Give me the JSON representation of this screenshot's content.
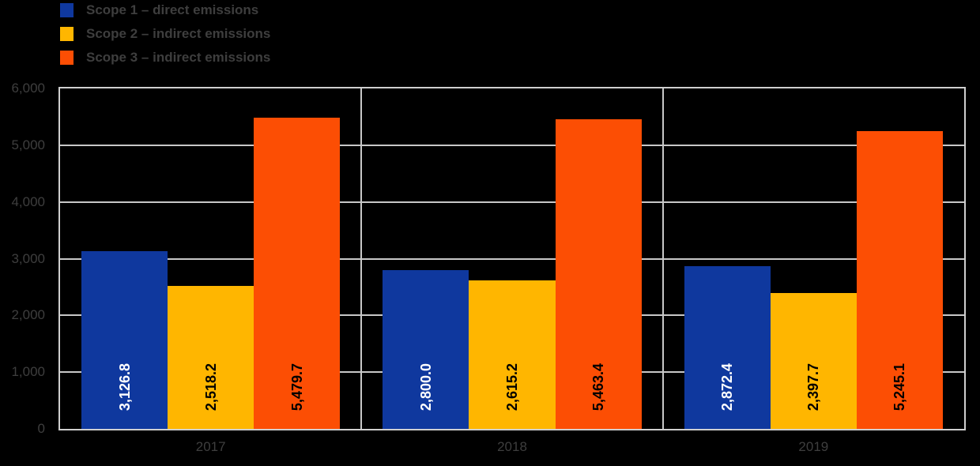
{
  "colors": {
    "background": "#000000",
    "grid": "#c8c8c8",
    "frame": "#cfcfcf",
    "axis_text": "#3e3e3e",
    "scope1_blue": "#0f389e",
    "scope2_yellow": "#ffb600",
    "scope3_orange": "#fc4e04",
    "value_label_on_blue": "#ffffff",
    "value_label_on_warm": "#000000"
  },
  "legend": {
    "position": "top-left",
    "items": [
      {
        "label": "Scope 1 – direct emissions",
        "color": "#0f389e"
      },
      {
        "label": "Scope 2 – indirect emissions",
        "color": "#ffb600"
      },
      {
        "label": "Scope 3 – indirect emissions",
        "color": "#fc4e04"
      }
    ]
  },
  "chart_data": {
    "type": "bar",
    "title": "",
    "xlabel": "",
    "ylabel": "",
    "grid": true,
    "legend_position": "top-left",
    "categories": [
      "2017",
      "2018",
      "2019"
    ],
    "ylim": [
      0,
      6000
    ],
    "ytick_step": 1000,
    "yticks": [
      "6,000",
      "5,000",
      "4,000",
      "3,000",
      "2,000",
      "1,000",
      "0"
    ],
    "series": [
      {
        "name": "Scope 1 – direct emissions",
        "color": "#0f389e",
        "label_color": "#ffffff",
        "values": [
          3126.8,
          2800.0,
          2872.4
        ],
        "value_labels": [
          "3,126.8",
          "2,800.0",
          "2,872.4"
        ]
      },
      {
        "name": "Scope 2 – indirect emissions",
        "color": "#ffb600",
        "label_color": "#000000",
        "values": [
          2518.2,
          2615.2,
          2397.7
        ],
        "value_labels": [
          "2,518.2",
          "2,615.2",
          "2,397.7"
        ]
      },
      {
        "name": "Scope 3 – indirect emissions",
        "color": "#fc4e04",
        "label_color": "#000000",
        "values": [
          5479.7,
          5463.4,
          5245.1
        ],
        "value_labels": [
          "5,479.7",
          "5,463.4",
          "5,245.1"
        ]
      }
    ]
  }
}
